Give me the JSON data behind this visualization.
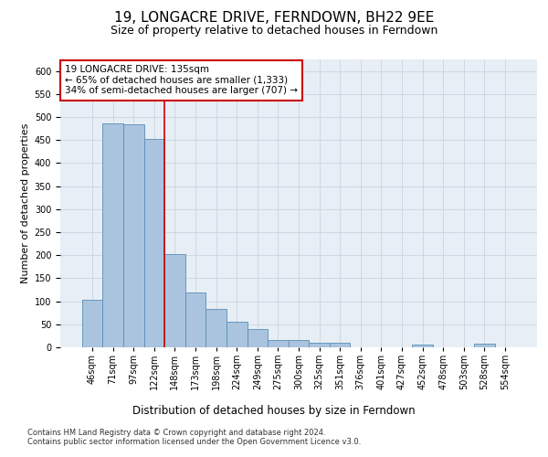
{
  "title": "19, LONGACRE DRIVE, FERNDOWN, BH22 9EE",
  "subtitle": "Size of property relative to detached houses in Ferndown",
  "xlabel_bottom": "Distribution of detached houses by size in Ferndown",
  "ylabel": "Number of detached properties",
  "categories": [
    "46sqm",
    "71sqm",
    "97sqm",
    "122sqm",
    "148sqm",
    "173sqm",
    "198sqm",
    "224sqm",
    "249sqm",
    "275sqm",
    "300sqm",
    "325sqm",
    "351sqm",
    "376sqm",
    "401sqm",
    "427sqm",
    "452sqm",
    "478sqm",
    "503sqm",
    "528sqm",
    "554sqm"
  ],
  "values": [
    104,
    487,
    484,
    453,
    202,
    120,
    83,
    56,
    40,
    15,
    15,
    10,
    10,
    0,
    0,
    0,
    5,
    0,
    0,
    7,
    0
  ],
  "bar_color": "#aac4df",
  "bar_edge_color": "#5a8db5",
  "vline_label": "19 LONGACRE DRIVE: 135sqm",
  "annotation_line1": "← 65% of detached houses are smaller (1,333)",
  "annotation_line2": "34% of semi-detached houses are larger (707) →",
  "annotation_box_color": "#ffffff",
  "annotation_box_edge": "#cc0000",
  "vline_color": "#cc0000",
  "ylim": [
    0,
    625
  ],
  "yticks": [
    0,
    50,
    100,
    150,
    200,
    250,
    300,
    350,
    400,
    450,
    500,
    550,
    600
  ],
  "bg_color": "#e8eef5",
  "grid_color": "#c8d4e0",
  "footer_line1": "Contains HM Land Registry data © Crown copyright and database right 2024.",
  "footer_line2": "Contains public sector information licensed under the Open Government Licence v3.0.",
  "title_fontsize": 11,
  "subtitle_fontsize": 9,
  "ylabel_fontsize": 8,
  "tick_fontsize": 7,
  "annot_fontsize": 7.5,
  "footer_fontsize": 6
}
